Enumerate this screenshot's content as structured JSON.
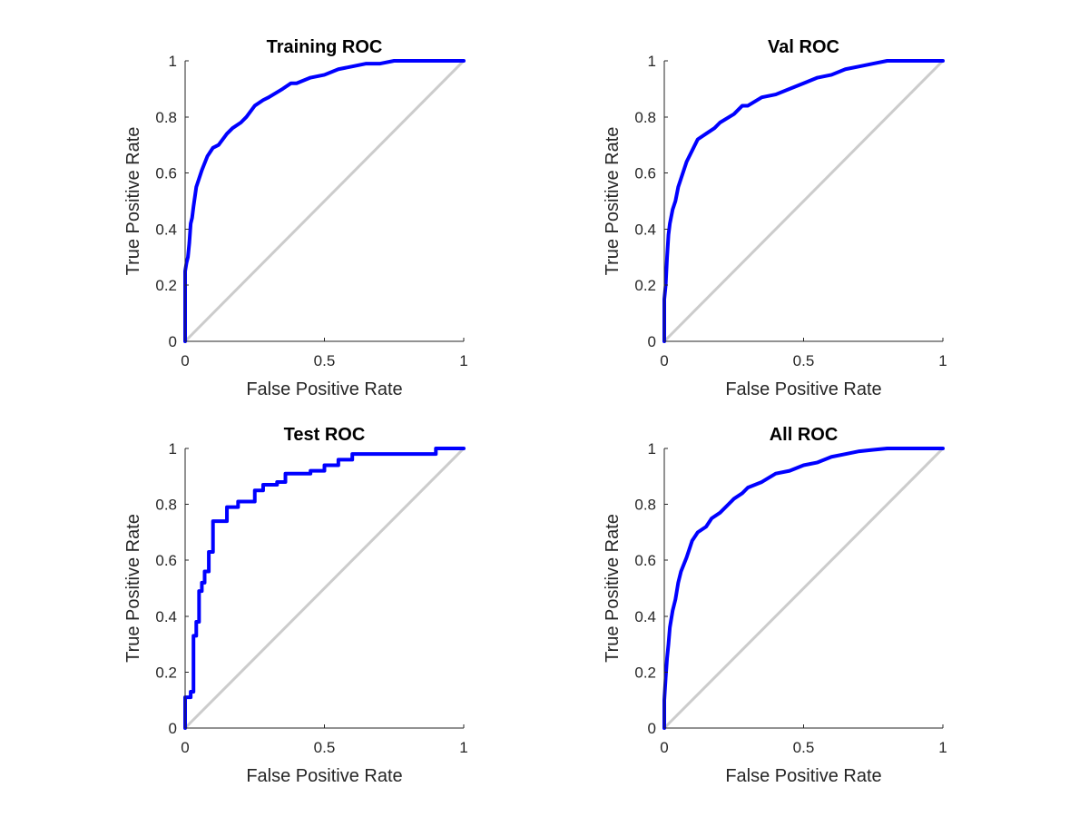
{
  "colors": {
    "roc_line": "#0000FF",
    "reference_line": "#CCCCCC",
    "axis": "#262626",
    "background": "#FFFFFF"
  },
  "chart_data": [
    {
      "type": "line",
      "title": "Training ROC",
      "xlabel": "False Positive Rate",
      "ylabel": "True Positive Rate",
      "xlim": [
        0,
        1
      ],
      "ylim": [
        0,
        1
      ],
      "x_ticks": [
        0,
        0.5,
        1
      ],
      "x_tick_labels": [
        "0",
        "0.5",
        "1"
      ],
      "y_ticks": [
        0,
        0.2,
        0.4,
        0.6,
        0.8,
        1
      ],
      "y_tick_labels": [
        "0",
        "0.2",
        "0.4",
        "0.6",
        "0.8",
        "1"
      ],
      "grid": false,
      "legend": "none",
      "series": [
        {
          "role": "reference",
          "x": [
            0,
            1
          ],
          "y": [
            0,
            1
          ]
        },
        {
          "role": "roc",
          "x": [
            0,
            0,
            0.005,
            0.01,
            0.015,
            0.02,
            0.025,
            0.03,
            0.04,
            0.05,
            0.06,
            0.08,
            0.1,
            0.12,
            0.15,
            0.17,
            0.2,
            0.22,
            0.25,
            0.28,
            0.3,
            0.35,
            0.38,
            0.4,
            0.45,
            0.5,
            0.55,
            0.6,
            0.65,
            0.7,
            0.75,
            0.8,
            0.9,
            1
          ],
          "y": [
            0,
            0.25,
            0.28,
            0.3,
            0.35,
            0.42,
            0.44,
            0.48,
            0.55,
            0.58,
            0.61,
            0.66,
            0.69,
            0.7,
            0.74,
            0.76,
            0.78,
            0.8,
            0.84,
            0.86,
            0.87,
            0.9,
            0.92,
            0.92,
            0.94,
            0.95,
            0.97,
            0.98,
            0.99,
            0.99,
            1.0,
            1.0,
            1.0,
            1.0
          ]
        }
      ]
    },
    {
      "type": "line",
      "title": "Val ROC",
      "xlabel": "False Positive Rate",
      "ylabel": "True Positive Rate",
      "xlim": [
        0,
        1
      ],
      "ylim": [
        0,
        1
      ],
      "x_ticks": [
        0,
        0.5,
        1
      ],
      "x_tick_labels": [
        "0",
        "0.5",
        "1"
      ],
      "y_ticks": [
        0,
        0.2,
        0.4,
        0.6,
        0.8,
        1
      ],
      "y_tick_labels": [
        "0",
        "0.2",
        "0.4",
        "0.6",
        "0.8",
        "1"
      ],
      "grid": false,
      "legend": "none",
      "series": [
        {
          "role": "reference",
          "x": [
            0,
            1
          ],
          "y": [
            0,
            1
          ]
        },
        {
          "role": "roc",
          "x": [
            0,
            0,
            0.005,
            0.01,
            0.015,
            0.02,
            0.03,
            0.04,
            0.05,
            0.06,
            0.08,
            0.1,
            0.12,
            0.15,
            0.18,
            0.2,
            0.25,
            0.28,
            0.3,
            0.35,
            0.4,
            0.45,
            0.5,
            0.55,
            0.6,
            0.65,
            0.7,
            0.75,
            0.8,
            0.9,
            1
          ],
          "y": [
            0,
            0.15,
            0.2,
            0.3,
            0.38,
            0.42,
            0.47,
            0.5,
            0.55,
            0.58,
            0.64,
            0.68,
            0.72,
            0.74,
            0.76,
            0.78,
            0.81,
            0.84,
            0.84,
            0.87,
            0.88,
            0.9,
            0.92,
            0.94,
            0.95,
            0.97,
            0.98,
            0.99,
            1.0,
            1.0,
            1.0
          ]
        }
      ]
    },
    {
      "type": "line",
      "title": "Test ROC",
      "xlabel": "False Positive Rate",
      "ylabel": "True Positive Rate",
      "xlim": [
        0,
        1
      ],
      "ylim": [
        0,
        1
      ],
      "x_ticks": [
        0,
        0.5,
        1
      ],
      "x_tick_labels": [
        "0",
        "0.5",
        "1"
      ],
      "y_ticks": [
        0,
        0.2,
        0.4,
        0.6,
        0.8,
        1
      ],
      "y_tick_labels": [
        "0",
        "0.2",
        "0.4",
        "0.6",
        "0.8",
        "1"
      ],
      "grid": false,
      "legend": "none",
      "series": [
        {
          "role": "reference",
          "x": [
            0,
            1
          ],
          "y": [
            0,
            1
          ]
        },
        {
          "role": "roc",
          "x": [
            0,
            0,
            0.02,
            0.02,
            0.03,
            0.03,
            0.04,
            0.04,
            0.05,
            0.05,
            0.06,
            0.06,
            0.07,
            0.07,
            0.085,
            0.085,
            0.1,
            0.1,
            0.15,
            0.15,
            0.19,
            0.19,
            0.25,
            0.25,
            0.28,
            0.28,
            0.33,
            0.33,
            0.36,
            0.36,
            0.45,
            0.45,
            0.5,
            0.5,
            0.55,
            0.55,
            0.6,
            0.6,
            0.9,
            0.9,
            1
          ],
          "y": [
            0,
            0.11,
            0.11,
            0.13,
            0.13,
            0.33,
            0.33,
            0.38,
            0.38,
            0.49,
            0.49,
            0.52,
            0.52,
            0.56,
            0.56,
            0.63,
            0.63,
            0.74,
            0.74,
            0.79,
            0.79,
            0.81,
            0.81,
            0.85,
            0.85,
            0.87,
            0.87,
            0.88,
            0.88,
            0.91,
            0.91,
            0.92,
            0.92,
            0.94,
            0.94,
            0.96,
            0.96,
            0.98,
            0.98,
            1.0,
            1.0
          ]
        }
      ]
    },
    {
      "type": "line",
      "title": "All ROC",
      "xlabel": "False Positive Rate",
      "ylabel": "True Positive Rate",
      "xlim": [
        0,
        1
      ],
      "ylim": [
        0,
        1
      ],
      "x_ticks": [
        0,
        0.5,
        1
      ],
      "x_tick_labels": [
        "0",
        "0.5",
        "1"
      ],
      "y_ticks": [
        0,
        0.2,
        0.4,
        0.6,
        0.8,
        1
      ],
      "y_tick_labels": [
        "0",
        "0.2",
        "0.4",
        "0.6",
        "0.8",
        "1"
      ],
      "grid": false,
      "legend": "none",
      "series": [
        {
          "role": "reference",
          "x": [
            0,
            1
          ],
          "y": [
            0,
            1
          ]
        },
        {
          "role": "roc",
          "x": [
            0,
            0,
            0.005,
            0.01,
            0.015,
            0.02,
            0.03,
            0.04,
            0.05,
            0.06,
            0.08,
            0.1,
            0.12,
            0.15,
            0.17,
            0.2,
            0.23,
            0.25,
            0.28,
            0.3,
            0.35,
            0.4,
            0.45,
            0.5,
            0.55,
            0.6,
            0.65,
            0.7,
            0.75,
            0.8,
            0.9,
            1
          ],
          "y": [
            0,
            0.1,
            0.18,
            0.25,
            0.3,
            0.36,
            0.42,
            0.46,
            0.52,
            0.56,
            0.61,
            0.67,
            0.7,
            0.72,
            0.75,
            0.77,
            0.8,
            0.82,
            0.84,
            0.86,
            0.88,
            0.91,
            0.92,
            0.94,
            0.95,
            0.97,
            0.98,
            0.99,
            0.995,
            1.0,
            1.0,
            1.0
          ]
        }
      ]
    }
  ]
}
